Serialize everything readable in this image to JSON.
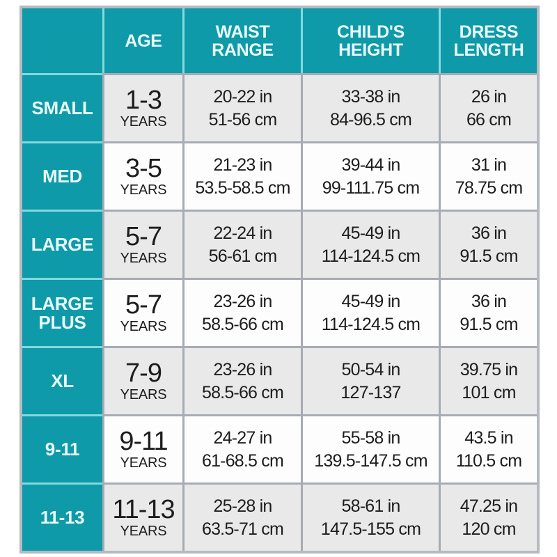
{
  "chart_data": {
    "type": "table",
    "columns": [
      "",
      "AGE",
      "WAIST RANGE",
      "CHILD'S HEIGHT",
      "DRESS LENGTH"
    ],
    "rows": [
      {
        "size": "SMALL",
        "age": "1-3",
        "age_unit": "YEARS",
        "waist_in": "20-22 in",
        "waist_cm": "51-56 cm",
        "height_in": "33-38 in",
        "height_cm": "84-96.5 cm",
        "length_in": "26 in",
        "length_cm": "66 cm"
      },
      {
        "size": "MED",
        "age": "3-5",
        "age_unit": "YEARS",
        "waist_in": "21-23 in",
        "waist_cm": "53.5-58.5 cm",
        "height_in": "39-44 in",
        "height_cm": "99-111.75 cm",
        "length_in": "31 in",
        "length_cm": "78.75 cm"
      },
      {
        "size": "LARGE",
        "age": "5-7",
        "age_unit": "YEARS",
        "waist_in": "22-24 in",
        "waist_cm": "56-61 cm",
        "height_in": "45-49 in",
        "height_cm": "114-124.5 cm",
        "length_in": "36 in",
        "length_cm": "91.5 cm"
      },
      {
        "size": "LARGE PLUS",
        "age": "5-7",
        "age_unit": "YEARS",
        "waist_in": "23-26 in",
        "waist_cm": "58.5-66 cm",
        "height_in": "45-49 in",
        "height_cm": "114-124.5 cm",
        "length_in": "36 in",
        "length_cm": "91.5 cm"
      },
      {
        "size": "XL",
        "age": "7-9",
        "age_unit": "YEARS",
        "waist_in": "23-26 in",
        "waist_cm": "58.5-66 cm",
        "height_in": "50-54 in",
        "height_cm": "127-137",
        "length_in": "39.75 in",
        "length_cm": "101 cm"
      },
      {
        "size": "9-11",
        "age": "9-11",
        "age_unit": "YEARS",
        "waist_in": "24-27 in",
        "waist_cm": "61-68.5 cm",
        "height_in": "55-58 in",
        "height_cm": "139.5-147.5 cm",
        "length_in": "43.5 in",
        "length_cm": "110.5 cm"
      },
      {
        "size": "11-13",
        "age": "11-13",
        "age_unit": "YEARS",
        "waist_in": "25-28 in",
        "waist_cm": "63.5-71 cm",
        "height_in": "58-61 in",
        "height_cm": "147.5-155 cm",
        "length_in": "47.25 in",
        "length_cm": "120 cm"
      }
    ]
  },
  "colors": {
    "teal": "#0e9aa9",
    "teal_divider": "#84d8de",
    "header_text": "#eafbfc",
    "grid_line": "#a7acb3",
    "outer_border": "#b5bac1",
    "row_gray": "#e9e9e9",
    "row_white": "#fdfdfd",
    "data_text": "#1d1d1f"
  }
}
